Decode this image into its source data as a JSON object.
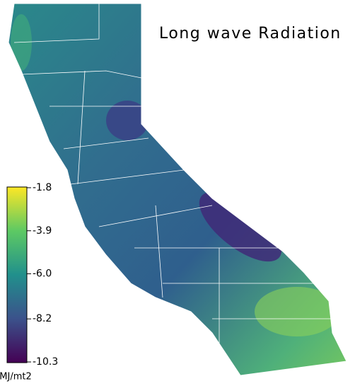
{
  "title": "Long wave Radiation",
  "colorbar": {
    "unit": "MJ/mt2",
    "clim": [
      -10.3,
      -1.8
    ],
    "ticks": [
      -1.8,
      -3.9,
      {
        "value": -6,
        "label": "-6.0"
      },
      -8.2,
      -10.3
    ]
  }
}
